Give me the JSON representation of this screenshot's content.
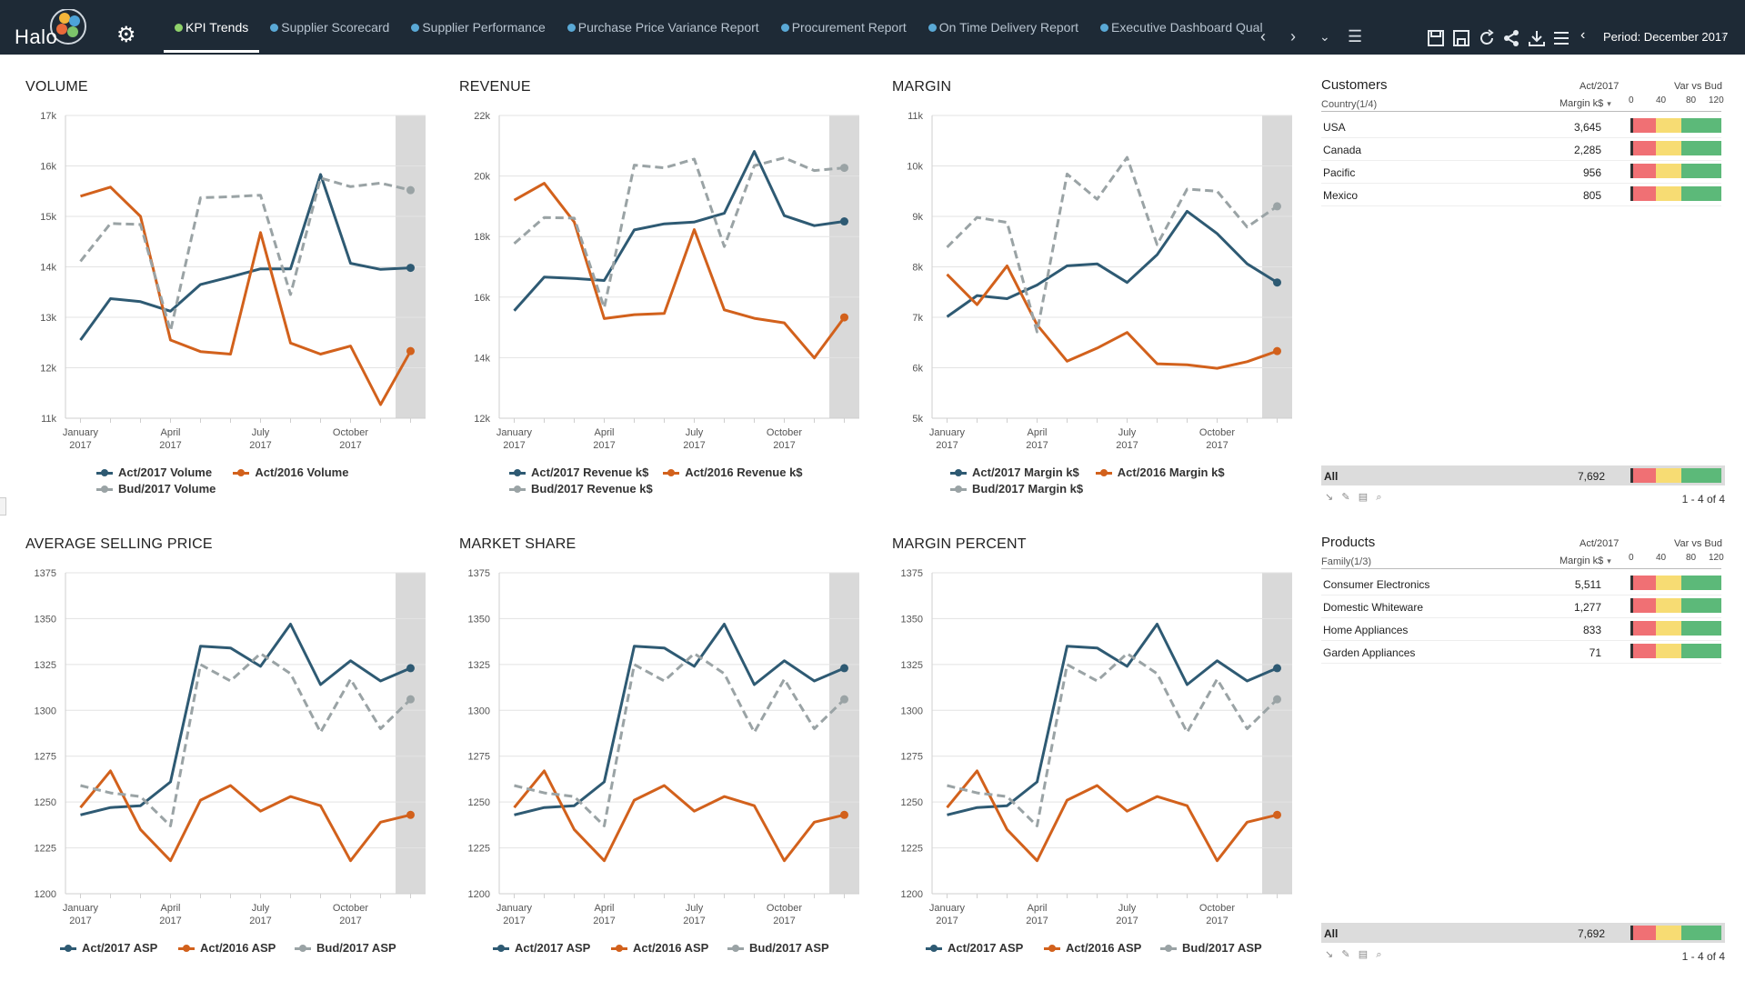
{
  "app": {
    "logo_text": "Halo"
  },
  "tabs": [
    {
      "label": "KPI Trends",
      "active": true
    },
    {
      "label": "Supplier Scorecard"
    },
    {
      "label": "Supplier Performance"
    },
    {
      "label": "Purchase Price Variance Report"
    },
    {
      "label": "Procurement Report"
    },
    {
      "label": "On Time Delivery Report"
    },
    {
      "label": "Executive Dashboard Qual"
    }
  ],
  "toolbar": {
    "period_label": "Period: December 2017",
    "icons": [
      "save-icon",
      "save-as-icon",
      "refresh-icon",
      "share-icon",
      "download-icon",
      "list-icon"
    ]
  },
  "colors": {
    "act2017": "#2e5a73",
    "act2016": "#d2611c",
    "bud2017": "#9aa3a5",
    "highlight": "#d9d9d9"
  },
  "chart_data": [
    {
      "id": "volume",
      "type": "line",
      "title": "VOLUME",
      "x_tick_labels": [
        [
          "January",
          "2017"
        ],
        [
          "April",
          "2017"
        ],
        [
          "July",
          "2017"
        ],
        [
          "October",
          "2017"
        ]
      ],
      "y_tick_labels": [
        "11k",
        "12k",
        "13k",
        "14k",
        "15k",
        "16k",
        "17k"
      ],
      "ylim": [
        11000,
        17000
      ],
      "categories": [
        "Jan",
        "Feb",
        "Mar",
        "Apr",
        "May",
        "Jun",
        "Jul",
        "Aug",
        "Sep",
        "Oct",
        "Nov",
        "Dec"
      ],
      "series": [
        {
          "name": "Act/2017 Volume",
          "color_key": "act2017",
          "values": [
            12550,
            13370,
            13310,
            13120,
            13650,
            13800,
            13960,
            13960,
            15830,
            14070,
            13950,
            13980
          ]
        },
        {
          "name": "Act/2016 Volume",
          "color_key": "act2016",
          "values": [
            15400,
            15580,
            15000,
            12550,
            12320,
            12270,
            14680,
            12490,
            12270,
            12430,
            11270,
            12330
          ]
        },
        {
          "name": "Bud/2017 Volume",
          "color_key": "bud2017",
          "dashed": true,
          "values": [
            14110,
            14860,
            14840,
            12730,
            15370,
            15390,
            15420,
            13450,
            15760,
            15590,
            15660,
            15520
          ]
        }
      ],
      "legend": [
        "Act/2017 Volume",
        "Act/2016 Volume",
        "Bud/2017 Volume"
      ]
    },
    {
      "id": "revenue",
      "type": "line",
      "title": "REVENUE",
      "x_tick_labels": [
        [
          "January",
          "2017"
        ],
        [
          "April",
          "2017"
        ],
        [
          "July",
          "2017"
        ],
        [
          "October",
          "2017"
        ]
      ],
      "y_tick_labels": [
        "12k",
        "14k",
        "16k",
        "18k",
        "20k",
        "22k"
      ],
      "ylim": [
        12000,
        22000
      ],
      "categories": [
        "Jan",
        "Feb",
        "Mar",
        "Apr",
        "May",
        "Jun",
        "Jul",
        "Aug",
        "Sep",
        "Oct",
        "Nov",
        "Dec"
      ],
      "series": [
        {
          "name": "Act/2017 Revenue k$",
          "color_key": "act2017",
          "values": [
            15550,
            16660,
            16620,
            16550,
            18220,
            18420,
            18480,
            18770,
            20810,
            18690,
            18360,
            18500
          ]
        },
        {
          "name": "Act/2016 Revenue k$",
          "color_key": "act2016",
          "values": [
            19200,
            19760,
            18480,
            15290,
            15420,
            15460,
            18230,
            15580,
            15300,
            15150,
            13990,
            15330
          ]
        },
        {
          "name": "Bud/2017 Revenue k$",
          "color_key": "bud2017",
          "dashed": true,
          "values": [
            17770,
            18630,
            18610,
            15650,
            20360,
            20270,
            20560,
            17670,
            20340,
            20600,
            20180,
            20270
          ]
        }
      ],
      "legend": [
        "Act/2017 Revenue k$",
        "Act/2016 Revenue k$",
        "Bud/2017 Revenue k$"
      ]
    },
    {
      "id": "margin",
      "type": "line",
      "title": "MARGIN",
      "x_tick_labels": [
        [
          "January",
          "2017"
        ],
        [
          "April",
          "2017"
        ],
        [
          "July",
          "2017"
        ],
        [
          "October",
          "2017"
        ]
      ],
      "y_tick_labels": [
        "5k",
        "6k",
        "7k",
        "8k",
        "9k",
        "10k",
        "11k"
      ],
      "ylim": [
        5000,
        11000
      ],
      "categories": [
        "Jan",
        "Feb",
        "Mar",
        "Apr",
        "May",
        "Jun",
        "Jul",
        "Aug",
        "Sep",
        "Oct",
        "Nov",
        "Dec"
      ],
      "series": [
        {
          "name": "Act/2017 Margin k$",
          "color_key": "act2017",
          "values": [
            7010,
            7430,
            7370,
            7640,
            8020,
            8060,
            7690,
            8240,
            9100,
            8660,
            8060,
            7690
          ]
        },
        {
          "name": "Act/2016 Margin k$",
          "color_key": "act2016",
          "values": [
            7850,
            7250,
            8020,
            6850,
            6130,
            6390,
            6700,
            6080,
            6060,
            5990,
            6120,
            6330
          ]
        },
        {
          "name": "Bud/2017 Margin k$",
          "color_key": "bud2017",
          "dashed": true,
          "values": [
            8390,
            8980,
            8880,
            6710,
            9840,
            9340,
            10170,
            8440,
            9540,
            9500,
            8790,
            9200
          ]
        }
      ],
      "legend": [
        "Act/2017 Margin k$",
        "Act/2016 Margin k$",
        "Bud/2017 Margin k$"
      ]
    },
    {
      "id": "asp",
      "type": "line",
      "title": "AVERAGE SELLING PRICE",
      "x_tick_labels": [
        [
          "January",
          "2017"
        ],
        [
          "April",
          "2017"
        ],
        [
          "July",
          "2017"
        ],
        [
          "October",
          "2017"
        ]
      ],
      "y_tick_labels": [
        "1200",
        "1225",
        "1250",
        "1275",
        "1300",
        "1325",
        "1350",
        "1375"
      ],
      "ylim": [
        1200,
        1375
      ],
      "categories": [
        "Jan",
        "Feb",
        "Mar",
        "Apr",
        "May",
        "Jun",
        "Jul",
        "Aug",
        "Sep",
        "Oct",
        "Nov",
        "Dec"
      ],
      "series": [
        {
          "name": "Act/2017 ASP",
          "color_key": "act2017",
          "values": [
            1243,
            1247,
            1248,
            1261,
            1335,
            1334,
            1324,
            1347,
            1314,
            1327,
            1316,
            1323
          ]
        },
        {
          "name": "Act/2016 ASP",
          "color_key": "act2016",
          "values": [
            1247,
            1267,
            1235,
            1218,
            1251,
            1259,
            1245,
            1253,
            1248,
            1218,
            1239,
            1243
          ]
        },
        {
          "name": "Bud/2017 ASP",
          "color_key": "bud2017",
          "dashed": true,
          "values": [
            1259,
            1255,
            1253,
            1237,
            1325,
            1316,
            1331,
            1320,
            1288,
            1317,
            1290,
            1306
          ]
        }
      ],
      "legend": [
        "Act/2017 ASP",
        "Act/2016 ASP",
        "Bud/2017 ASP"
      ]
    },
    {
      "id": "market_share",
      "type": "line",
      "title": "MARKET SHARE",
      "x_tick_labels": [
        [
          "January",
          "2017"
        ],
        [
          "April",
          "2017"
        ],
        [
          "July",
          "2017"
        ],
        [
          "October",
          "2017"
        ]
      ],
      "y_tick_labels": [
        "1200",
        "1225",
        "1250",
        "1275",
        "1300",
        "1325",
        "1350",
        "1375"
      ],
      "ylim": [
        1200,
        1375
      ],
      "categories": [
        "Jan",
        "Feb",
        "Mar",
        "Apr",
        "May",
        "Jun",
        "Jul",
        "Aug",
        "Sep",
        "Oct",
        "Nov",
        "Dec"
      ],
      "series": [
        {
          "name": "Act/2017 ASP",
          "color_key": "act2017",
          "values": [
            1243,
            1247,
            1248,
            1261,
            1335,
            1334,
            1324,
            1347,
            1314,
            1327,
            1316,
            1323
          ]
        },
        {
          "name": "Act/2016 ASP",
          "color_key": "act2016",
          "values": [
            1247,
            1267,
            1235,
            1218,
            1251,
            1259,
            1245,
            1253,
            1248,
            1218,
            1239,
            1243
          ]
        },
        {
          "name": "Bud/2017 ASP",
          "color_key": "bud2017",
          "dashed": true,
          "values": [
            1259,
            1255,
            1253,
            1237,
            1325,
            1316,
            1331,
            1320,
            1288,
            1317,
            1290,
            1306
          ]
        }
      ],
      "legend": [
        "Act/2017 ASP",
        "Act/2016 ASP",
        "Bud/2017 ASP"
      ]
    },
    {
      "id": "margin_percent",
      "type": "line",
      "title": "MARGIN PERCENT",
      "x_tick_labels": [
        [
          "January",
          "2017"
        ],
        [
          "April",
          "2017"
        ],
        [
          "July",
          "2017"
        ],
        [
          "October",
          "2017"
        ]
      ],
      "y_tick_labels": [
        "1200",
        "1225",
        "1250",
        "1275",
        "1300",
        "1325",
        "1350",
        "1375"
      ],
      "ylim": [
        1200,
        1375
      ],
      "categories": [
        "Jan",
        "Feb",
        "Mar",
        "Apr",
        "May",
        "Jun",
        "Jul",
        "Aug",
        "Sep",
        "Oct",
        "Nov",
        "Dec"
      ],
      "series": [
        {
          "name": "Act/2017 ASP",
          "color_key": "act2017",
          "values": [
            1243,
            1247,
            1248,
            1261,
            1335,
            1334,
            1324,
            1347,
            1314,
            1327,
            1316,
            1323
          ]
        },
        {
          "name": "Act/2016 ASP",
          "color_key": "act2016",
          "values": [
            1247,
            1267,
            1235,
            1218,
            1251,
            1259,
            1245,
            1253,
            1248,
            1218,
            1239,
            1243
          ]
        },
        {
          "name": "Bud/2017 ASP",
          "color_key": "bud2017",
          "dashed": true,
          "values": [
            1259,
            1255,
            1253,
            1237,
            1325,
            1316,
            1331,
            1320,
            1288,
            1317,
            1290,
            1306
          ]
        }
      ],
      "legend": [
        "Act/2017 ASP",
        "Act/2016 ASP",
        "Bud/2017 ASP"
      ]
    }
  ],
  "customers": {
    "title": "Customers",
    "dim_label": "Country(1/4)",
    "col_act": "Act/2017",
    "col_measure": "Margin k$",
    "col_var": "Var vs Bud",
    "scale_ticks": [
      "0",
      "40",
      "80",
      "120"
    ],
    "rows": [
      {
        "label": "USA",
        "value": "3,645"
      },
      {
        "label": "Canada",
        "value": "2,285"
      },
      {
        "label": "Pacific",
        "value": "956"
      },
      {
        "label": "Mexico",
        "value": "805"
      }
    ],
    "total_label": "All",
    "total_value": "7,692",
    "pager": "1 - 4 of 4"
  },
  "products": {
    "title": "Products",
    "dim_label": "Family(1/3)",
    "col_act": "Act/2017",
    "col_measure": "Margin k$",
    "col_var": "Var vs Bud",
    "scale_ticks": [
      "0",
      "40",
      "80",
      "120"
    ],
    "rows": [
      {
        "label": "Consumer Electronics",
        "value": "5,511"
      },
      {
        "label": "Domestic Whiteware",
        "value": "1,277"
      },
      {
        "label": "Home Appliances",
        "value": "833"
      },
      {
        "label": "Garden Appliances",
        "value": "71"
      }
    ],
    "total_label": "All",
    "total_value": "7,692",
    "pager": "1 - 4 of 4"
  }
}
